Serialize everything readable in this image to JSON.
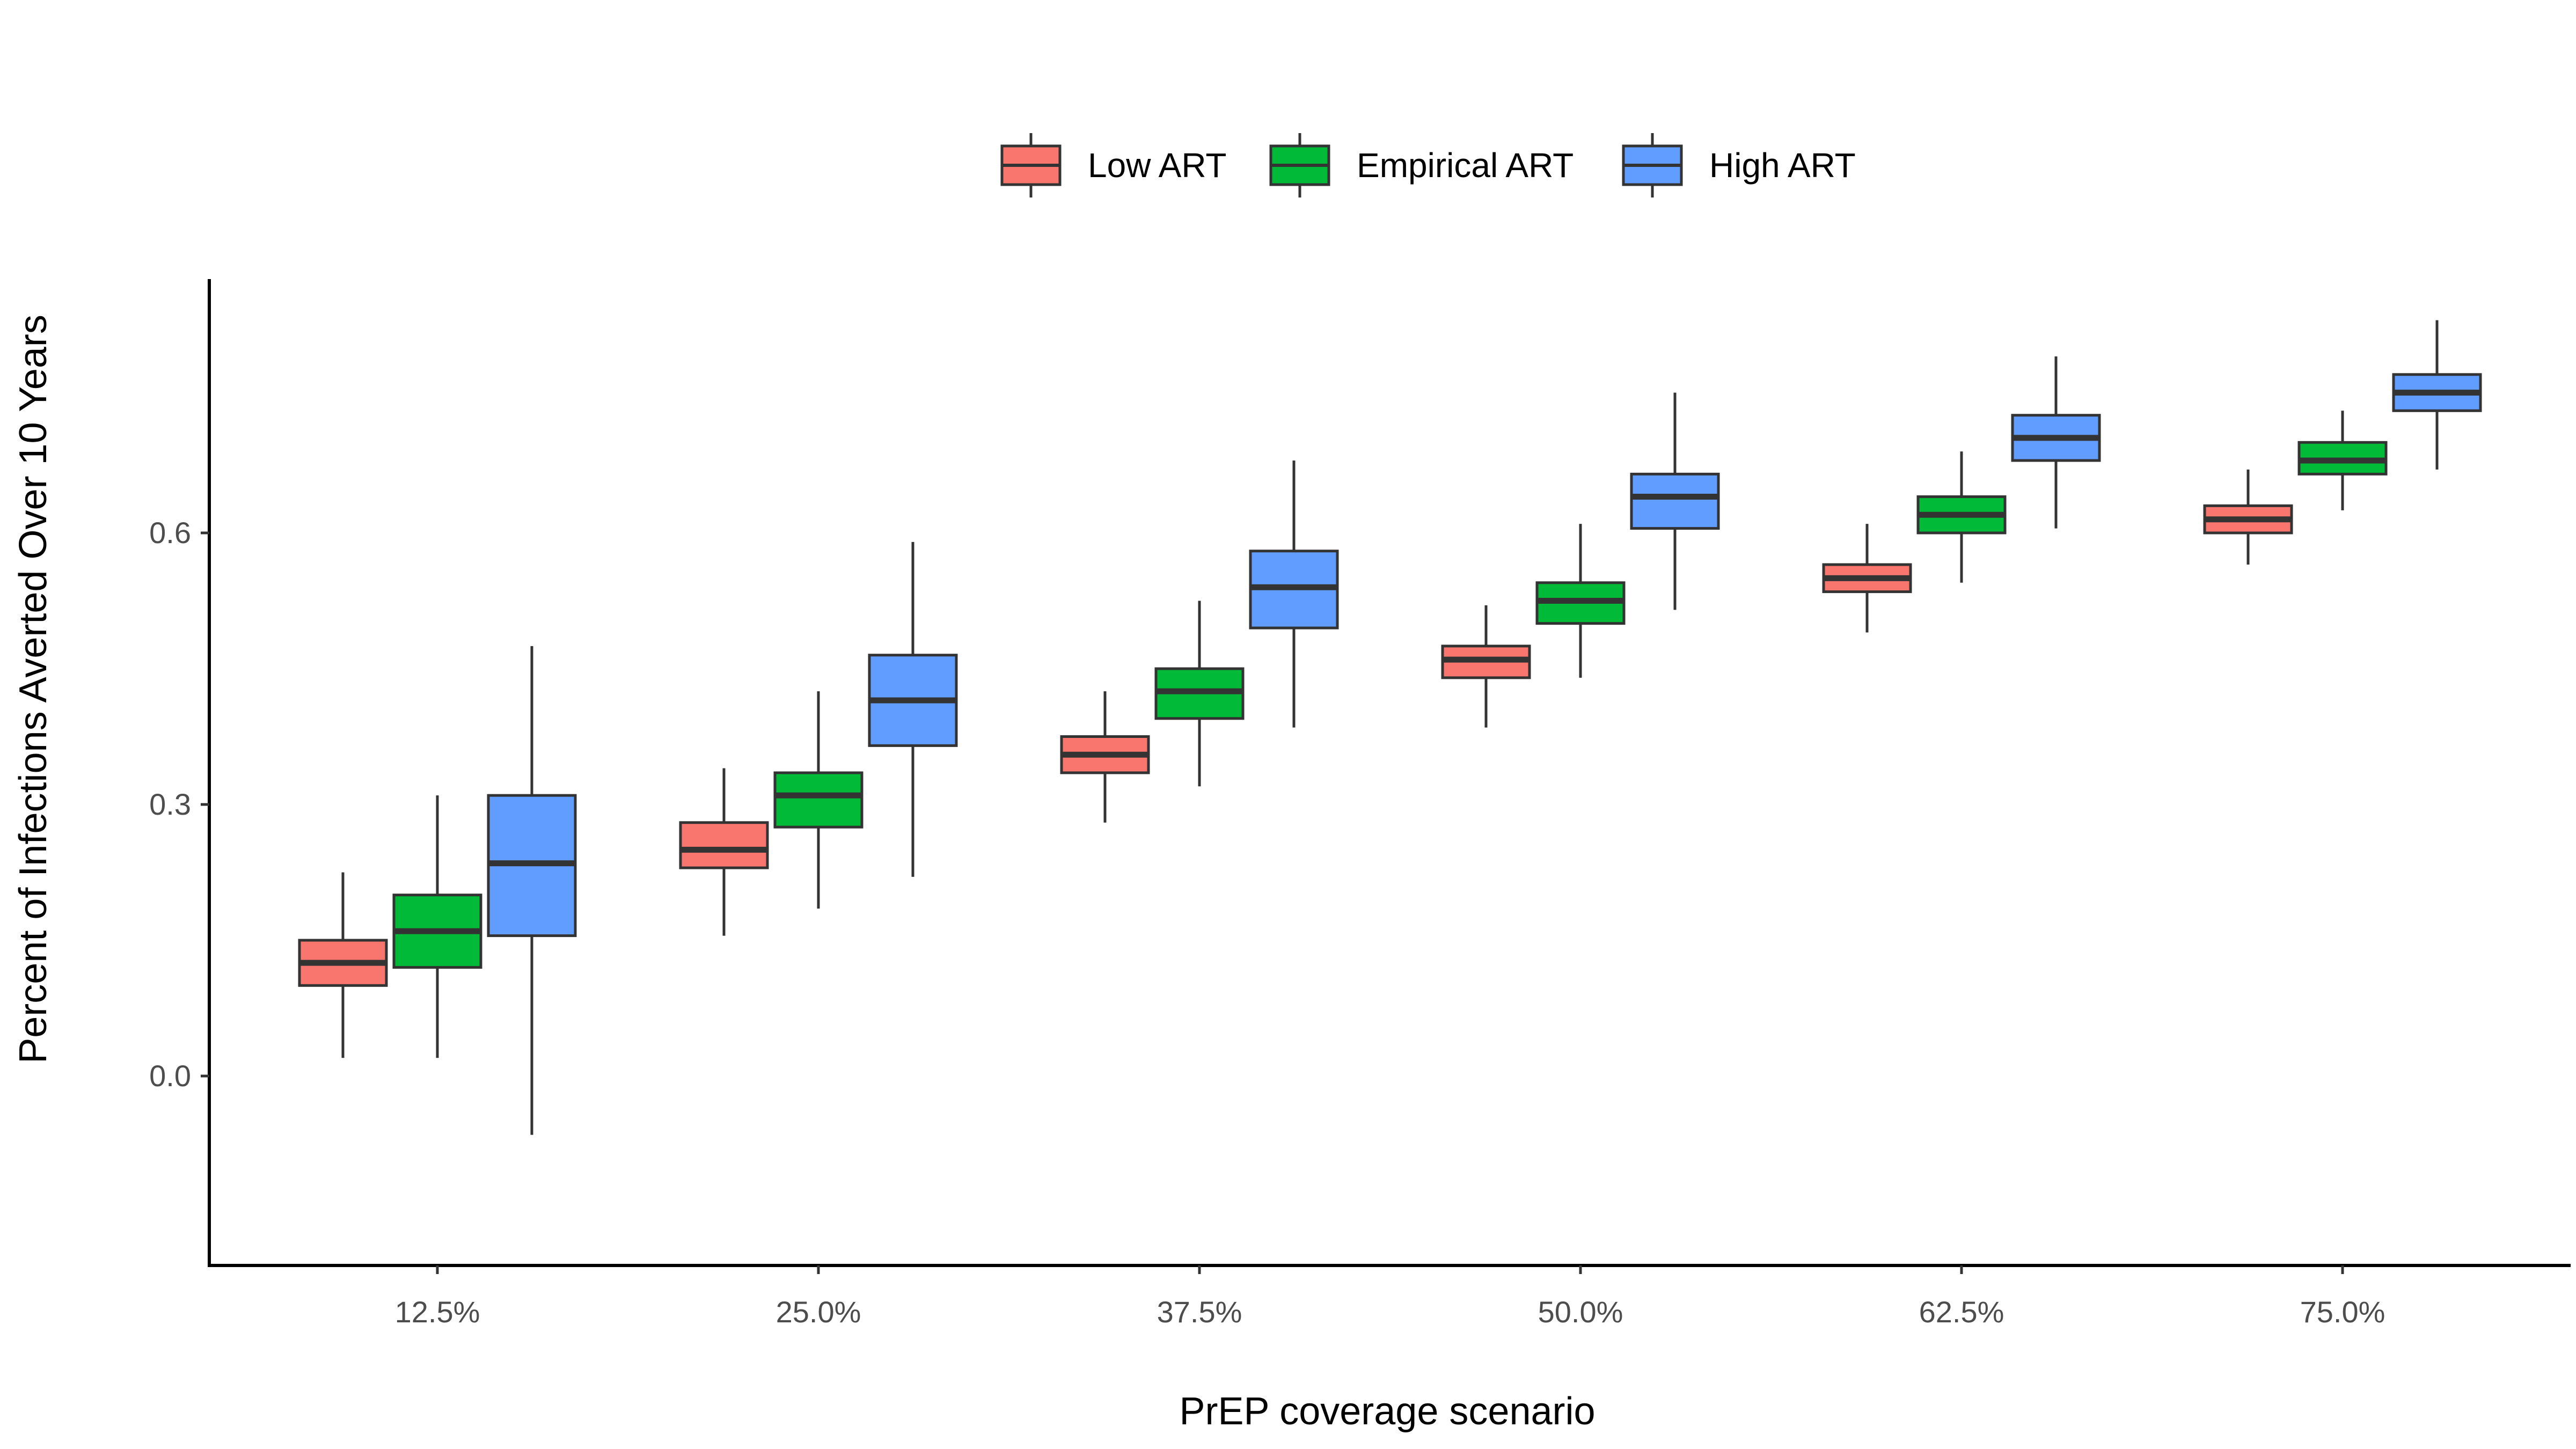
{
  "chart_data": {
    "type": "boxplot",
    "xlabel": "PrEP coverage scenario",
    "ylabel": "Percent of Infections Averted Over 10 Years",
    "categories": [
      "12.5%",
      "25.0%",
      "37.5%",
      "50.0%",
      "62.5%",
      "75.0%"
    ],
    "y_ticks": [
      "0.0",
      "0.3",
      "0.6"
    ],
    "y_tick_values": [
      0.0,
      0.3,
      0.6
    ],
    "ylim": [
      -0.21,
      0.88
    ],
    "grid": false,
    "legend_position": "top",
    "series": [
      {
        "name": "Low ART",
        "color": "#F8766D",
        "boxes": [
          {
            "min": 0.02,
            "q1": 0.1,
            "median": 0.125,
            "q3": 0.15,
            "max": 0.225
          },
          {
            "min": 0.155,
            "q1": 0.23,
            "median": 0.25,
            "q3": 0.28,
            "max": 0.34
          },
          {
            "min": 0.28,
            "q1": 0.335,
            "median": 0.355,
            "q3": 0.375,
            "max": 0.425
          },
          {
            "min": 0.385,
            "q1": 0.44,
            "median": 0.46,
            "q3": 0.475,
            "max": 0.52
          },
          {
            "min": 0.49,
            "q1": 0.535,
            "median": 0.55,
            "q3": 0.565,
            "max": 0.61
          },
          {
            "min": 0.565,
            "q1": 0.6,
            "median": 0.615,
            "q3": 0.63,
            "max": 0.67
          }
        ]
      },
      {
        "name": "Empirical ART",
        "color": "#00BA38",
        "boxes": [
          {
            "min": 0.02,
            "q1": 0.12,
            "median": 0.16,
            "q3": 0.2,
            "max": 0.31
          },
          {
            "min": 0.185,
            "q1": 0.275,
            "median": 0.31,
            "q3": 0.335,
            "max": 0.425
          },
          {
            "min": 0.32,
            "q1": 0.395,
            "median": 0.425,
            "q3": 0.45,
            "max": 0.525
          },
          {
            "min": 0.44,
            "q1": 0.5,
            "median": 0.525,
            "q3": 0.545,
            "max": 0.61
          },
          {
            "min": 0.545,
            "q1": 0.6,
            "median": 0.62,
            "q3": 0.64,
            "max": 0.69
          },
          {
            "min": 0.625,
            "q1": 0.665,
            "median": 0.68,
            "q3": 0.7,
            "max": 0.735
          }
        ]
      },
      {
        "name": "High ART",
        "color": "#619CFF",
        "boxes": [
          {
            "min": -0.065,
            "q1": 0.155,
            "median": 0.235,
            "q3": 0.31,
            "max": 0.475
          },
          {
            "min": 0.22,
            "q1": 0.365,
            "median": 0.415,
            "q3": 0.465,
            "max": 0.59
          },
          {
            "min": 0.385,
            "q1": 0.495,
            "median": 0.54,
            "q3": 0.58,
            "max": 0.68
          },
          {
            "min": 0.515,
            "q1": 0.605,
            "median": 0.64,
            "q3": 0.665,
            "max": 0.755
          },
          {
            "min": 0.605,
            "q1": 0.68,
            "median": 0.705,
            "q3": 0.73,
            "max": 0.795
          },
          {
            "min": 0.67,
            "q1": 0.735,
            "median": 0.755,
            "q3": 0.775,
            "max": 0.835
          }
        ]
      }
    ]
  }
}
